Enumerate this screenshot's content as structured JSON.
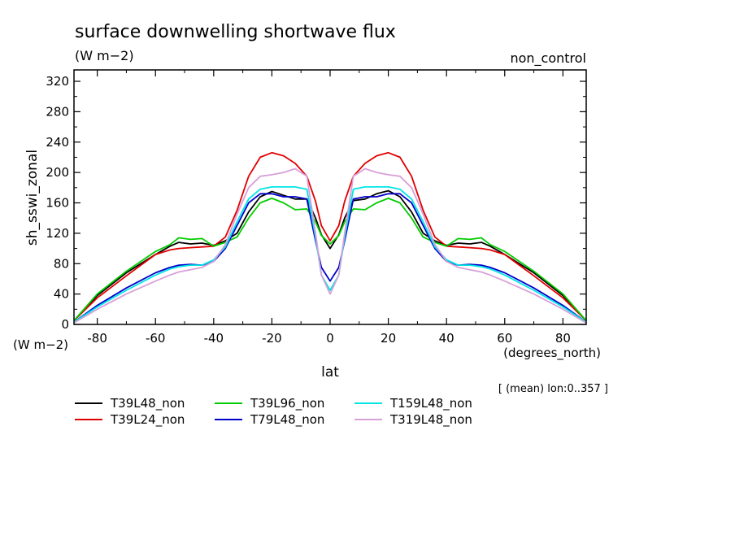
{
  "chart_data": {
    "type": "line",
    "title": "surface downwelling shortwave flux",
    "subtitle": "(W m−2)",
    "top_right_label": "non_control",
    "ylabel": "sh_sswi_zonal",
    "y_units": "(W m−2)",
    "xlabel": "lat",
    "x_units": "(degrees_north)",
    "footnote": "[ (mean) lon:0..357 ]",
    "xlim": [
      -88,
      88
    ],
    "ylim": [
      0,
      335
    ],
    "xticks": [
      -80,
      -60,
      -40,
      -20,
      0,
      20,
      40,
      60,
      80
    ],
    "xtick_labels": [
      "-80",
      "-60",
      "-40",
      "-20",
      "0",
      "20",
      "40",
      "60",
      "80"
    ],
    "yticks": [
      0,
      40,
      80,
      120,
      160,
      200,
      240,
      280,
      320
    ],
    "ytick_labels": [
      "0",
      "40",
      "80",
      "120",
      "160",
      "200",
      "240",
      "280",
      "320"
    ],
    "grid": false,
    "legend_placement": "bottom",
    "x": [
      -88,
      -80,
      -70,
      -60,
      -55,
      -52,
      -48,
      -44,
      -40,
      -36,
      -32,
      -28,
      -24,
      -20,
      -16,
      -12,
      -8,
      -5,
      -3,
      0,
      3,
      5,
      8,
      12,
      16,
      20,
      24,
      28,
      32,
      36,
      40,
      44,
      48,
      52,
      55,
      60,
      70,
      80,
      88
    ],
    "series": [
      {
        "name": "T39L48_non",
        "color": "#000000",
        "values": [
          5,
          38,
          68,
          92,
          103,
          108,
          106,
          107,
          104,
          110,
          120,
          148,
          168,
          175,
          170,
          165,
          165,
          140,
          118,
          100,
          118,
          140,
          163,
          165,
          172,
          176,
          168,
          148,
          120,
          110,
          104,
          107,
          106,
          108,
          103,
          92,
          68,
          38,
          5
        ]
      },
      {
        "name": "T39L24_non",
        "color": "#e00000",
        "values": [
          5,
          35,
          64,
          92,
          98,
          100,
          101,
          102,
          103,
          115,
          150,
          195,
          220,
          226,
          222,
          212,
          195,
          162,
          130,
          110,
          130,
          162,
          195,
          212,
          222,
          226,
          220,
          195,
          150,
          115,
          103,
          102,
          101,
          100,
          98,
          92,
          64,
          35,
          5
        ]
      },
      {
        "name": "T39L96_non",
        "color": "#00cc00",
        "values": [
          5,
          40,
          70,
          96,
          105,
          114,
          112,
          113,
          103,
          108,
          115,
          140,
          160,
          166,
          160,
          151,
          152,
          135,
          117,
          106,
          117,
          135,
          152,
          151,
          160,
          166,
          160,
          140,
          115,
          108,
          103,
          113,
          112,
          114,
          105,
          96,
          70,
          40,
          5
        ]
      },
      {
        "name": "T79L48_non",
        "color": "#0000cc",
        "values": [
          3,
          25,
          48,
          68,
          75,
          78,
          79,
          78,
          83,
          100,
          130,
          160,
          172,
          172,
          168,
          168,
          165,
          110,
          75,
          57,
          75,
          110,
          165,
          168,
          168,
          172,
          172,
          160,
          130,
          100,
          83,
          78,
          79,
          78,
          75,
          68,
          48,
          25,
          3
        ]
      },
      {
        "name": "T159L48_non",
        "color": "#00e5e5",
        "values": [
          3,
          23,
          45,
          65,
          73,
          76,
          78,
          78,
          85,
          102,
          135,
          165,
          178,
          181,
          181,
          181,
          178,
          115,
          65,
          45,
          65,
          115,
          178,
          181,
          181,
          181,
          178,
          165,
          135,
          102,
          85,
          78,
          78,
          76,
          73,
          65,
          45,
          23,
          3
        ]
      },
      {
        "name": "T319L48_non",
        "color": "#d8a0d8",
        "values": [
          2,
          20,
          40,
          57,
          65,
          69,
          72,
          75,
          83,
          105,
          145,
          180,
          195,
          197,
          200,
          205,
          195,
          120,
          65,
          40,
          65,
          120,
          195,
          205,
          200,
          197,
          195,
          180,
          145,
          105,
          83,
          75,
          72,
          69,
          65,
          57,
          40,
          20,
          2
        ]
      }
    ]
  }
}
